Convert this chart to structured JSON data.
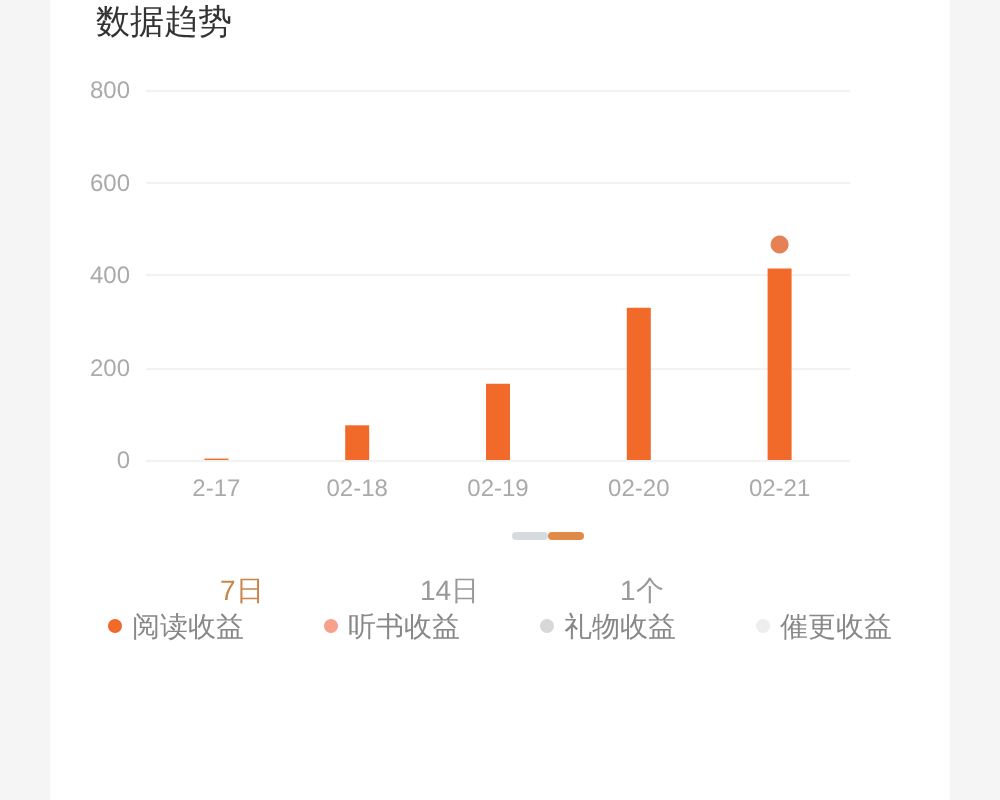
{
  "chart_data": {
    "type": "bar",
    "title": "数据趋势",
    "categories": [
      "2-17",
      "02-18",
      "02-19",
      "02-20",
      "02-21"
    ],
    "stacked": true,
    "series": [
      {
        "name": "阅读收益",
        "color": "#f26a2a",
        "values": [
          3,
          75,
          165,
          329,
          414
        ]
      },
      {
        "name": "听书收益",
        "color": "#f7a08a",
        "values": [
          null,
          null,
          null,
          null,
          null
        ]
      },
      {
        "name": "礼物收益",
        "color": "#d8d8d8",
        "values": [
          null,
          null,
          null,
          null,
          null
        ]
      },
      {
        "name": "催更收益",
        "color": "#eeeeee",
        "values": [
          null,
          null,
          null,
          null,
          null
        ]
      },
      {
        "type": "scatter",
        "color": "#e0602a",
        "x": [
          "02-21"
        ],
        "values": [
          466
        ]
      }
    ],
    "ylim": [
      0,
      800
    ],
    "yticks": [
      0,
      200,
      400,
      600,
      800
    ],
    "grid": "y",
    "legend": "bottom",
    "marker": "circle",
    "annotations": [
      "7日",
      "14日",
      "1个"
    ]
  }
}
